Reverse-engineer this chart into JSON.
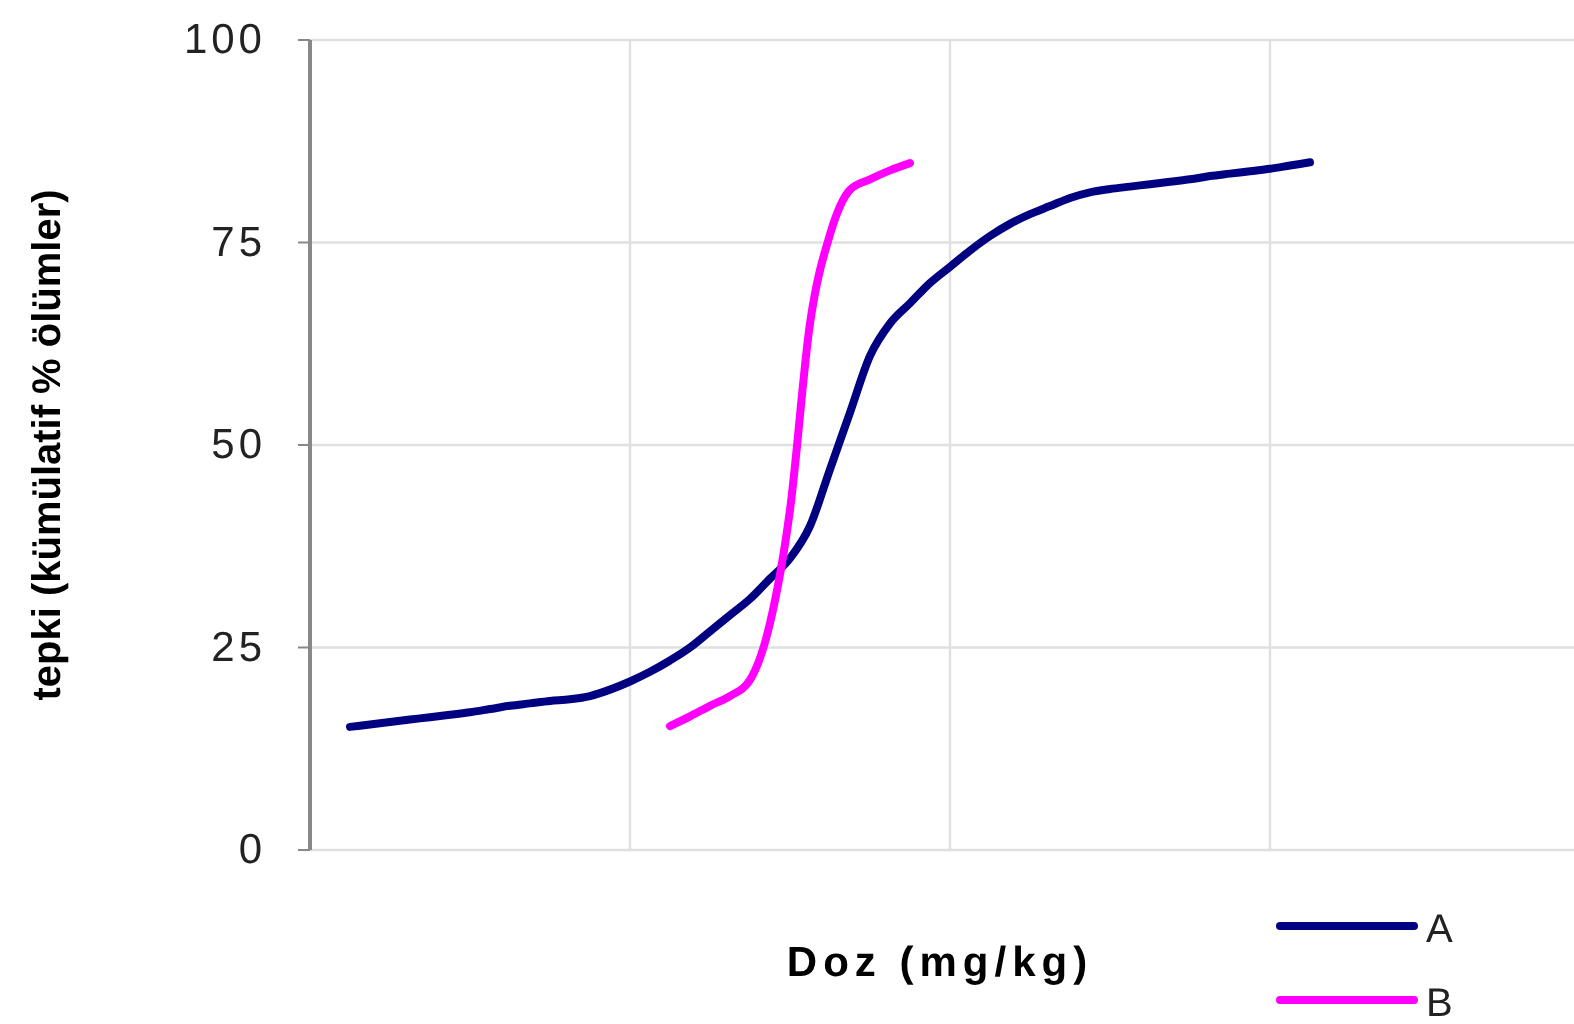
{
  "chart_data": {
    "type": "line",
    "xlabel": "Doz (mg/kg)",
    "ylabel": "tepki (kümülatif % ölümler)",
    "categories": [
      null,
      null,
      null,
      null,
      null,
      null,
      null,
      null,
      null,
      null,
      null,
      null,
      null,
      null,
      null,
      null,
      null,
      null,
      null,
      null,
      null,
      null,
      null,
      null,
      null,
      null,
      null,
      null,
      null,
      null,
      null,
      null,
      null,
      null,
      null,
      null,
      null,
      null,
      null,
      null,
      null,
      null,
      null,
      null,
      null,
      null,
      null,
      null,
      null,
      null,
      null,
      null,
      null,
      null,
      null,
      null,
      null,
      null,
      null,
      null,
      null,
      null,
      null,
      null
    ],
    "ylim": [
      0,
      100
    ],
    "yticks": [
      0,
      25,
      50,
      75,
      100
    ],
    "grid": true,
    "legend": "bottom right",
    "tick_labels": "y",
    "series": [
      {
        "name": "A",
        "color": "#000080",
        "values": [
          null,
          null,
          15.2,
          15.5,
          15.8,
          16.1,
          16.4,
          16.7,
          17,
          17.4,
          17.8,
          18.1,
          18.4,
          18.6,
          19,
          19.8,
          20.8,
          22,
          23.4,
          25,
          27,
          29,
          31,
          33.5,
          36,
          40,
          47,
          54,
          61,
          65,
          67.5,
          70,
          72,
          74,
          75.8,
          77.3,
          78.5,
          79.5,
          80.5,
          81.2,
          81.6,
          81.9,
          82.2,
          82.5,
          82.8,
          83.2,
          83.5,
          83.8,
          84.1,
          84.5,
          84.9,
          null,
          null,
          null,
          null,
          null,
          null,
          null,
          null,
          null,
          null,
          null,
          null,
          null
        ]
      },
      {
        "name": "B",
        "color": "#ff00ff",
        "values": [
          null,
          null,
          null,
          null,
          null,
          null,
          null,
          null,
          null,
          null,
          null,
          null,
          null,
          null,
          null,
          null,
          null,
          null,
          15.3,
          16.5,
          17.8,
          19,
          21,
          28,
          42,
          65,
          76,
          81.5,
          82.8,
          83.9,
          84.8,
          null,
          null,
          null,
          null,
          null,
          null,
          null,
          null,
          null,
          null,
          null,
          null,
          null,
          null,
          null,
          null,
          null,
          null,
          null,
          null,
          null,
          null,
          null,
          null,
          null,
          null,
          null,
          null,
          null,
          null,
          null,
          null,
          null
        ]
      }
    ]
  }
}
